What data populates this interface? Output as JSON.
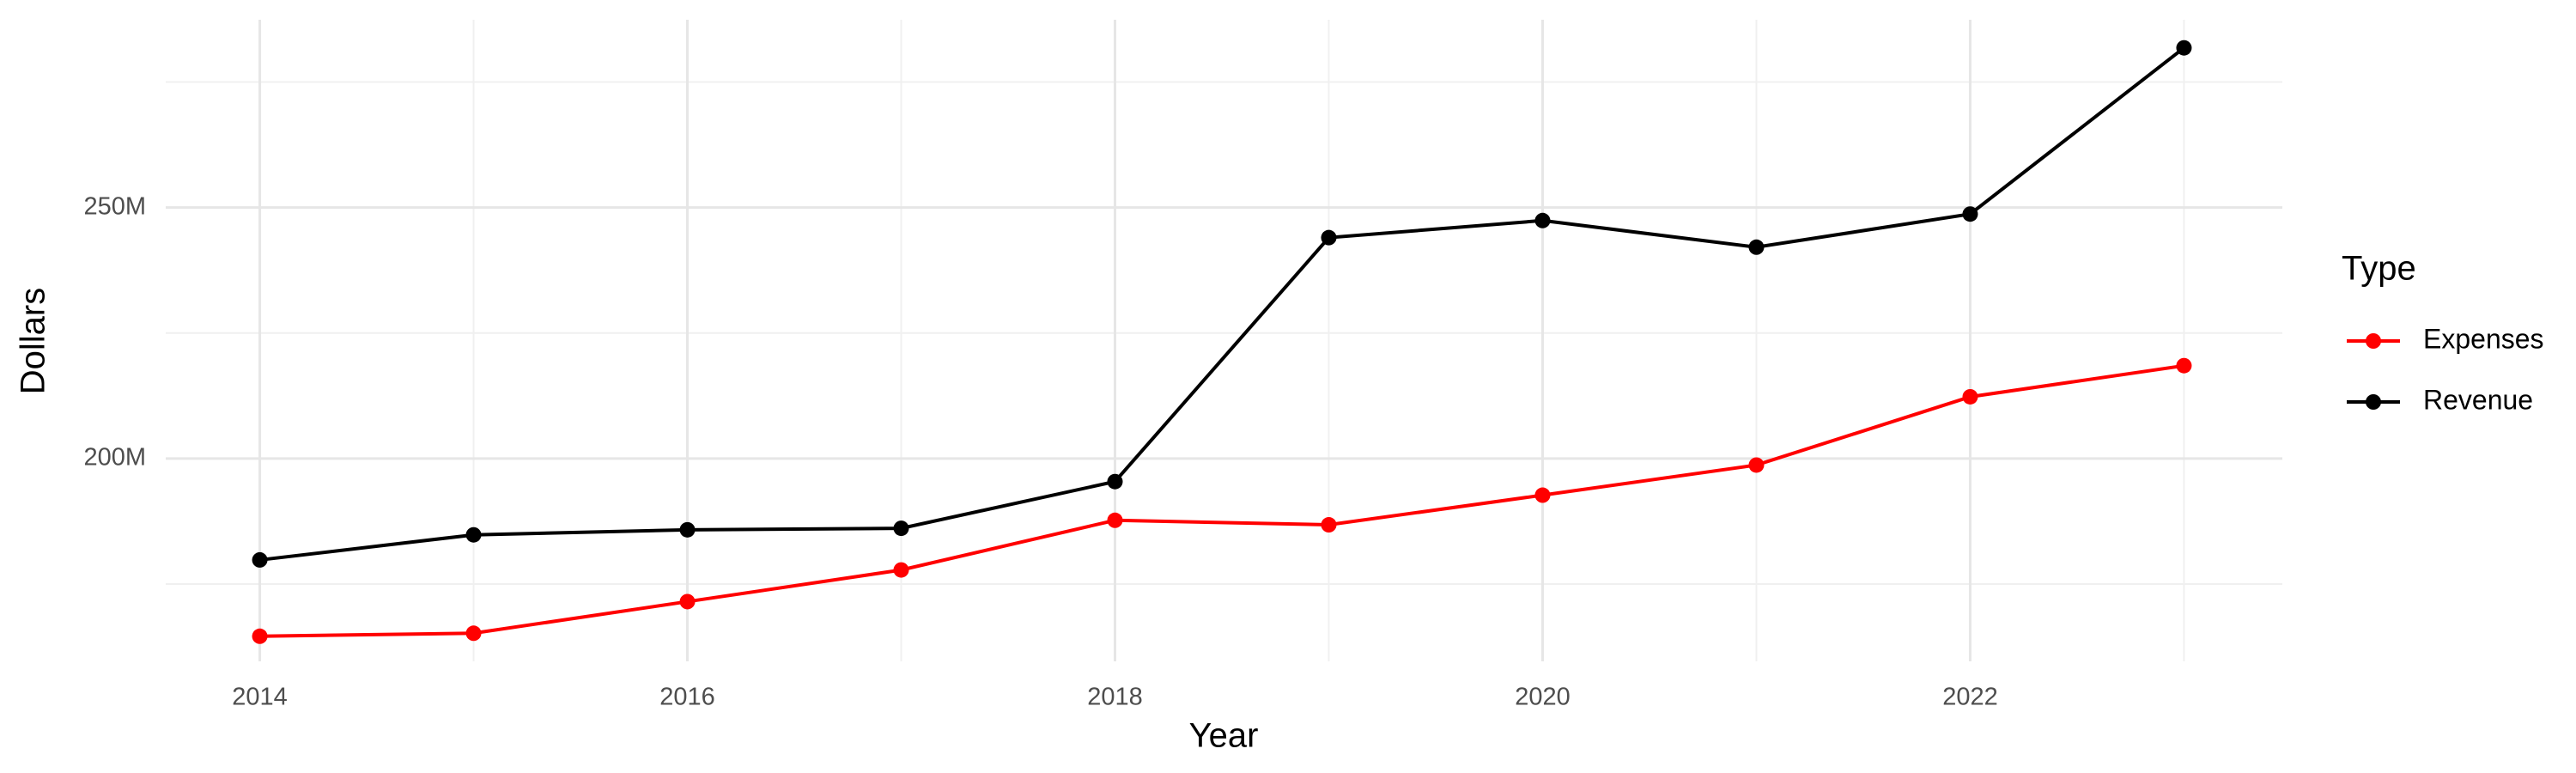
{
  "chart_data": {
    "type": "line",
    "x_label": "Year",
    "y_label": "Dollars",
    "legend_title": "Type",
    "legend_position": "right",
    "grid": true,
    "x": [
      2014,
      2015,
      2016,
      2017,
      2018,
      2019,
      2020,
      2021,
      2022,
      2023
    ],
    "series": [
      {
        "name": "Expenses",
        "color": "#ff0000",
        "values": [
          164600000,
          165200000,
          171500000,
          177800000,
          187700000,
          186800000,
          192700000,
          198700000,
          212300000,
          218500000
        ]
      },
      {
        "name": "Revenue",
        "color": "#000000",
        "values": [
          179800000,
          184800000,
          185800000,
          186100000,
          195400000,
          244000000,
          247400000,
          242100000,
          248700000,
          281800000
        ]
      }
    ],
    "xlim": [
      2013.56,
      2023.46
    ],
    "xticks": [
      2014,
      2016,
      2018,
      2020,
      2022
    ],
    "x_minor_ticks": [
      2015,
      2017,
      2019,
      2021,
      2023
    ],
    "ylim": [
      159600000,
      287400000
    ],
    "yticks": [
      {
        "value": 200000000,
        "label": "200M"
      },
      {
        "value": 250000000,
        "label": "250M"
      }
    ],
    "y_minor_ticks": [
      175000000,
      225000000,
      275000000
    ]
  }
}
